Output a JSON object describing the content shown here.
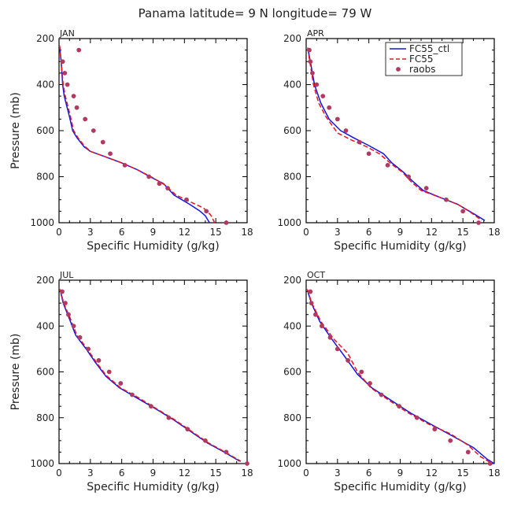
{
  "title": "Panama  latitude= 9 N longitude= 79 W",
  "colors": {
    "FC55_ctl": "#1515e0",
    "FC55": "#e8141e",
    "raobs": "#b03a62",
    "axis": "#000000"
  },
  "legend": {
    "placement": "top-right (APR panel)",
    "entries": [
      {
        "label": "FC55_ctl",
        "style": "solid-line"
      },
      {
        "label": "FC55",
        "style": "dashed-line"
      },
      {
        "label": "raobs",
        "style": "dot"
      }
    ]
  },
  "chart_data": [
    {
      "type": "line",
      "panel": "JAN",
      "xlabel": "Specific Humidity (g/kg)",
      "ylabel": "Pressure (mb)",
      "xlim": [
        0,
        18
      ],
      "ylim": [
        1000,
        200
      ],
      "y_inverted": true,
      "xticks": [
        "0",
        "3",
        "6",
        "9",
        "12",
        "15",
        "18"
      ],
      "yticks": [
        "200",
        "400",
        "600",
        "800",
        "1000"
      ],
      "series": [
        {
          "name": "FC55_ctl",
          "style": "solid",
          "points": [
            [
              0.05,
              230
            ],
            [
              0.2,
              300
            ],
            [
              0.35,
              400
            ],
            [
              0.5,
              450
            ],
            [
              1.0,
              540
            ],
            [
              1.3,
              600
            ],
            [
              1.7,
              630
            ],
            [
              2.4,
              670
            ],
            [
              3.0,
              690
            ],
            [
              4.5,
              715
            ],
            [
              6.0,
              740
            ],
            [
              7.5,
              770
            ],
            [
              8.7,
              800
            ],
            [
              10.0,
              830
            ],
            [
              11.0,
              880
            ],
            [
              12.5,
              920
            ],
            [
              13.5,
              950
            ],
            [
              14.0,
              970
            ],
            [
              14.4,
              1000
            ]
          ]
        },
        {
          "name": "FC55",
          "style": "dashed",
          "points": [
            [
              0.05,
              230
            ],
            [
              0.2,
              300
            ],
            [
              0.4,
              400
            ],
            [
              0.6,
              450
            ],
            [
              1.1,
              540
            ],
            [
              1.4,
              600
            ],
            [
              1.8,
              630
            ],
            [
              2.4,
              665
            ],
            [
              3.0,
              690
            ],
            [
              4.5,
              715
            ],
            [
              6.0,
              740
            ],
            [
              7.5,
              770
            ],
            [
              8.8,
              800
            ],
            [
              10.1,
              835
            ],
            [
              11.2,
              880
            ],
            [
              12.6,
              910
            ],
            [
              13.8,
              935
            ],
            [
              14.5,
              965
            ],
            [
              14.9,
              1000
            ]
          ]
        },
        {
          "name": "raobs",
          "style": "dots",
          "points": [
            [
              1.9,
              250
            ],
            [
              0.35,
              300
            ],
            [
              0.55,
              350
            ],
            [
              0.8,
              400
            ],
            [
              1.4,
              450
            ],
            [
              1.7,
              500
            ],
            [
              2.5,
              550
            ],
            [
              3.3,
              600
            ],
            [
              4.2,
              650
            ],
            [
              4.9,
              700
            ],
            [
              6.3,
              750
            ],
            [
              8.6,
              800
            ],
            [
              9.6,
              830
            ],
            [
              10.4,
              850
            ],
            [
              12.2,
              900
            ],
            [
              14.1,
              950
            ],
            [
              16.0,
              1000
            ]
          ]
        }
      ]
    },
    {
      "type": "line",
      "panel": "APR",
      "xlabel": "Specific Humidity (g/kg)",
      "ylabel": "Pressure (mb)",
      "xlim": [
        0,
        18
      ],
      "ylim": [
        1000,
        200
      ],
      "y_inverted": true,
      "xticks": [
        "0",
        "3",
        "6",
        "9",
        "12",
        "15",
        "18"
      ],
      "yticks": [
        "200",
        "400",
        "600",
        "800",
        "1000"
      ],
      "series": [
        {
          "name": "FC55_ctl",
          "style": "solid",
          "points": [
            [
              0.15,
              240
            ],
            [
              0.4,
              300
            ],
            [
              0.8,
              400
            ],
            [
              1.4,
              480
            ],
            [
              2.2,
              550
            ],
            [
              3.3,
              600
            ],
            [
              4.5,
              630
            ],
            [
              6.0,
              665
            ],
            [
              7.4,
              700
            ],
            [
              8.2,
              740
            ],
            [
              9.3,
              780
            ],
            [
              10.2,
              820
            ],
            [
              11.2,
              860
            ],
            [
              12.8,
              890
            ],
            [
              14.5,
              920
            ],
            [
              16.0,
              960
            ],
            [
              17.1,
              990
            ]
          ]
        },
        {
          "name": "FC55",
          "style": "dashed",
          "points": [
            [
              0.15,
              240
            ],
            [
              0.35,
              300
            ],
            [
              0.7,
              400
            ],
            [
              1.2,
              480
            ],
            [
              1.9,
              540
            ],
            [
              3.0,
              610
            ],
            [
              4.3,
              640
            ],
            [
              5.8,
              670
            ],
            [
              7.0,
              700
            ],
            [
              8.3,
              750
            ],
            [
              9.2,
              780
            ],
            [
              10.0,
              820
            ],
            [
              11.0,
              860
            ],
            [
              12.8,
              890
            ],
            [
              14.5,
              920
            ],
            [
              15.6,
              950
            ],
            [
              16.8,
              990
            ]
          ]
        },
        {
          "name": "raobs",
          "style": "dots",
          "points": [
            [
              0.3,
              250
            ],
            [
              0.4,
              300
            ],
            [
              0.6,
              350
            ],
            [
              1.0,
              400
            ],
            [
              1.6,
              450
            ],
            [
              2.2,
              500
            ],
            [
              3.0,
              550
            ],
            [
              3.8,
              600
            ],
            [
              5.1,
              650
            ],
            [
              6.0,
              700
            ],
            [
              7.8,
              750
            ],
            [
              9.8,
              800
            ],
            [
              11.5,
              850
            ],
            [
              13.4,
              900
            ],
            [
              15.0,
              950
            ],
            [
              16.5,
              1000
            ]
          ]
        }
      ]
    },
    {
      "type": "line",
      "panel": "JUL",
      "xlabel": "Specific Humidity (g/kg)",
      "ylabel": "Pressure (mb)",
      "xlim": [
        0,
        18
      ],
      "ylim": [
        1000,
        200
      ],
      "y_inverted": true,
      "xticks": [
        "0",
        "3",
        "6",
        "9",
        "12",
        "15",
        "18"
      ],
      "yticks": [
        "200",
        "400",
        "600",
        "800",
        "1000"
      ],
      "series": [
        {
          "name": "FC55_ctl",
          "style": "solid",
          "points": [
            [
              0.1,
              240
            ],
            [
              0.4,
              300
            ],
            [
              1.0,
              370
            ],
            [
              1.6,
              440
            ],
            [
              2.6,
              500
            ],
            [
              3.5,
              560
            ],
            [
              4.5,
              620
            ],
            [
              5.8,
              670
            ],
            [
              7.3,
              710
            ],
            [
              9.2,
              760
            ],
            [
              11.0,
              810
            ],
            [
              12.6,
              860
            ],
            [
              14.2,
              910
            ],
            [
              15.8,
              950
            ],
            [
              17.3,
              990
            ]
          ]
        },
        {
          "name": "FC55",
          "style": "dashed",
          "points": [
            [
              0.1,
              240
            ],
            [
              0.45,
              300
            ],
            [
              1.1,
              370
            ],
            [
              1.7,
              440
            ],
            [
              2.7,
              500
            ],
            [
              3.6,
              560
            ],
            [
              4.5,
              615
            ],
            [
              5.9,
              670
            ],
            [
              7.5,
              710
            ],
            [
              9.3,
              760
            ],
            [
              11.1,
              810
            ],
            [
              12.7,
              860
            ],
            [
              14.3,
              910
            ],
            [
              15.9,
              950
            ],
            [
              17.4,
              990
            ]
          ]
        },
        {
          "name": "raobs",
          "style": "dots",
          "points": [
            [
              0.3,
              250
            ],
            [
              0.6,
              300
            ],
            [
              0.9,
              350
            ],
            [
              1.4,
              400
            ],
            [
              2.0,
              450
            ],
            [
              2.8,
              500
            ],
            [
              3.8,
              550
            ],
            [
              4.8,
              600
            ],
            [
              5.9,
              650
            ],
            [
              7.0,
              700
            ],
            [
              8.8,
              750
            ],
            [
              10.5,
              800
            ],
            [
              12.3,
              850
            ],
            [
              14.0,
              900
            ],
            [
              16.0,
              950
            ],
            [
              18.0,
              1000
            ]
          ]
        }
      ]
    },
    {
      "type": "line",
      "panel": "OCT",
      "xlabel": "Specific Humidity (g/kg)",
      "ylabel": "Pressure (mb)",
      "xlim": [
        0,
        18
      ],
      "ylim": [
        1000,
        200
      ],
      "y_inverted": true,
      "xticks": [
        "0",
        "3",
        "6",
        "9",
        "12",
        "15",
        "18"
      ],
      "yticks": [
        "200",
        "400",
        "600",
        "800",
        "1000"
      ],
      "series": [
        {
          "name": "FC55_ctl",
          "style": "solid",
          "points": [
            [
              0.1,
              240
            ],
            [
              0.5,
              300
            ],
            [
              1.3,
              380
            ],
            [
              2.5,
              460
            ],
            [
              3.8,
              540
            ],
            [
              4.9,
              610
            ],
            [
              6.3,
              670
            ],
            [
              8.0,
              720
            ],
            [
              10.0,
              780
            ],
            [
              12.0,
              830
            ],
            [
              14.0,
              880
            ],
            [
              16.0,
              930
            ],
            [
              17.3,
              980
            ],
            [
              18.0,
              1000
            ]
          ]
        },
        {
          "name": "FC55",
          "style": "dashed",
          "points": [
            [
              0.1,
              240
            ],
            [
              0.55,
              300
            ],
            [
              1.4,
              380
            ],
            [
              2.7,
              460
            ],
            [
              4.0,
              520
            ],
            [
              4.9,
              600
            ],
            [
              6.2,
              670
            ],
            [
              7.8,
              720
            ],
            [
              9.8,
              780
            ],
            [
              11.8,
              830
            ],
            [
              13.8,
              870
            ],
            [
              15.5,
              920
            ],
            [
              16.7,
              970
            ],
            [
              17.8,
              1000
            ]
          ]
        },
        {
          "name": "raobs",
          "style": "dots",
          "points": [
            [
              0.4,
              250
            ],
            [
              0.5,
              300
            ],
            [
              0.9,
              350
            ],
            [
              1.5,
              400
            ],
            [
              2.3,
              450
            ],
            [
              3.0,
              500
            ],
            [
              4.0,
              550
            ],
            [
              5.3,
              600
            ],
            [
              6.1,
              650
            ],
            [
              7.2,
              700
            ],
            [
              8.9,
              750
            ],
            [
              10.6,
              800
            ],
            [
              12.3,
              850
            ],
            [
              13.8,
              900
            ],
            [
              15.5,
              950
            ],
            [
              17.6,
              1000
            ]
          ]
        }
      ]
    }
  ]
}
